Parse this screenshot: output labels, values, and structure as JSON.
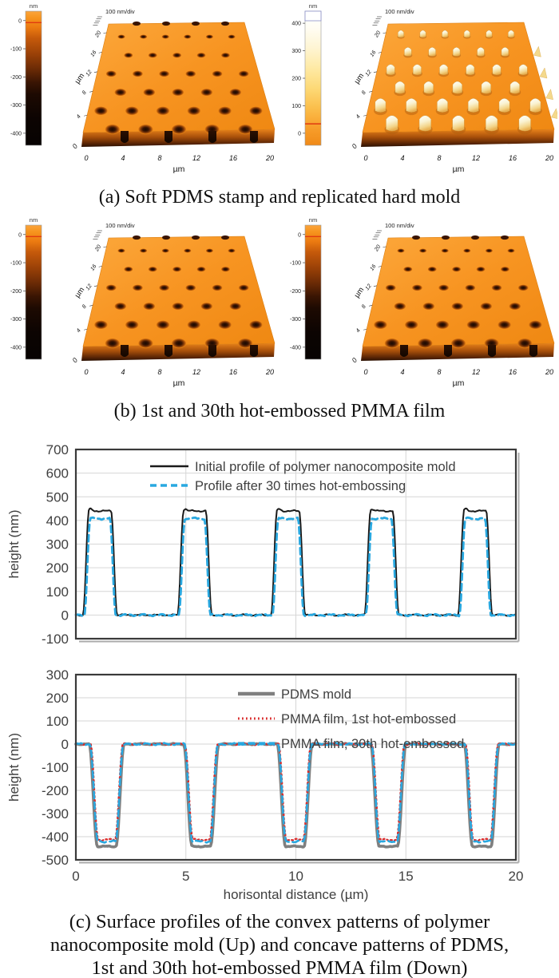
{
  "figure": {
    "captions": {
      "a": "(a) Soft PDMS stamp and replicated hard mold",
      "b": "(b) 1st and 30th hot-embossed PMMA film",
      "c_line1": "(c) Surface profiles of the convex patterns of polymer",
      "c_line2": "nanocomposite mold (Up) and concave patterns of PDMS,",
      "c_line3": "1st and 30th hot-embossed PMMA film (Down)"
    }
  },
  "afm": {
    "scale_label": "100 nm/div",
    "axis_unit": "µm",
    "x_ticks": [
      "0",
      "4",
      "8",
      "12",
      "16",
      "20"
    ],
    "y_ticks": [
      "20",
      "16",
      "12",
      "8",
      "4"
    ],
    "origin_label": "0",
    "colorbar_unit": "nm",
    "negative_ticks": [
      "0",
      "-100",
      "-200",
      "-300",
      "-400"
    ],
    "positive_ticks": [
      "400",
      "300",
      "200",
      "100",
      "0"
    ],
    "colors": {
      "surface_orange": "#F79421",
      "front_dark": "#5A2505",
      "hole_dark": "#1C0A02",
      "pillar_cream": "#FAF3D2",
      "marker_red": "#E03A10"
    },
    "panels": [
      {
        "id": "pdms-stamp",
        "row": "a",
        "side": "left",
        "type": "holes",
        "colorbar": "negative"
      },
      {
        "id": "hard-mold",
        "row": "a",
        "side": "right",
        "type": "pillars",
        "colorbar": "positive"
      },
      {
        "id": "pmma-1st",
        "row": "b",
        "side": "left",
        "type": "holes",
        "colorbar": "negative"
      },
      {
        "id": "pmma-30th",
        "row": "b",
        "side": "right",
        "type": "holes",
        "colorbar": "negative"
      }
    ]
  },
  "chart_data": [
    {
      "type": "line",
      "position": "upper",
      "title": "",
      "xlabel": "",
      "ylabel": "height (nm)",
      "xlim": [
        0,
        20
      ],
      "ylim": [
        -100,
        700
      ],
      "ytick_step": 100,
      "x_gridlines": [
        5,
        10,
        15
      ],
      "x_tick_labels_shown": false,
      "grid": true,
      "legend_position": "top-inside-left",
      "series": [
        {
          "name": "Initial profile of polymer nanocomposite mold",
          "color": "#1a1a1a",
          "style": "solid",
          "width": 2,
          "profile": {
            "baseline": 0,
            "amplitude": 440,
            "centers": [
              1.1,
              5.4,
              9.65,
              13.9,
              18.15
            ],
            "top_half_width": 0.5,
            "base_half_width": 0.78,
            "noise": 4,
            "ear": 8,
            "period_um": 4.26,
            "plateau_height_nm": 440
          }
        },
        {
          "name": "Profile after 30 times hot-embossing",
          "color": "#29A8E0",
          "style": "dashed",
          "width": 2.8,
          "profile": {
            "baseline": 0,
            "amplitude": 408,
            "centers": [
              1.1,
              5.4,
              9.65,
              13.9,
              18.15
            ],
            "top_half_width": 0.44,
            "base_half_width": 0.72,
            "noise": 5,
            "ear": 0,
            "period_um": 4.26,
            "plateau_height_nm": 408
          }
        }
      ]
    },
    {
      "type": "line",
      "position": "lower",
      "title": "",
      "xlabel": "horisontal distance (µm)",
      "ylabel": "height (nm)",
      "xlim": [
        0,
        20
      ],
      "ylim": [
        -500,
        300
      ],
      "ytick_step": 100,
      "xticks": [
        "0",
        "5",
        "10",
        "15",
        "20"
      ],
      "x_gridlines": [
        5,
        10,
        15
      ],
      "x_tick_labels_shown": true,
      "grid": true,
      "legend_position": "top-inside-center",
      "series": [
        {
          "name": "PDMS mold",
          "color": "#7F7F7F",
          "style": "solid",
          "width": 3.6,
          "profile": {
            "baseline": 0,
            "amplitude": -442,
            "centers": [
              1.4,
              5.7,
              9.95,
              14.2,
              18.45
            ],
            "top_half_width": 0.42,
            "base_half_width": 0.8,
            "noise": 3,
            "ear": 0,
            "period_um": 4.26,
            "trough_depth_nm": -442
          }
        },
        {
          "name": "PMMA film, 1st hot-embossed",
          "color": "#D92B2B",
          "style": "dotted",
          "width": 2.3,
          "profile": {
            "baseline": 0,
            "amplitude": -413,
            "centers": [
              1.4,
              5.7,
              9.95,
              14.2,
              18.45
            ],
            "top_half_width": 0.38,
            "base_half_width": 0.74,
            "noise": 5,
            "ear": 0,
            "period_um": 4.26,
            "trough_depth_nm": -413
          }
        },
        {
          "name": "PMMA film, 30th hot-embossed",
          "color": "#29A8E0",
          "style": "dashed",
          "width": 2.6,
          "profile": {
            "baseline": 0,
            "amplitude": -421,
            "centers": [
              1.4,
              5.7,
              9.95,
              14.2,
              18.45
            ],
            "top_half_width": 0.4,
            "base_half_width": 0.76,
            "noise": 5,
            "ear": 0,
            "period_um": 4.26,
            "trough_depth_nm": -421
          }
        }
      ]
    }
  ]
}
